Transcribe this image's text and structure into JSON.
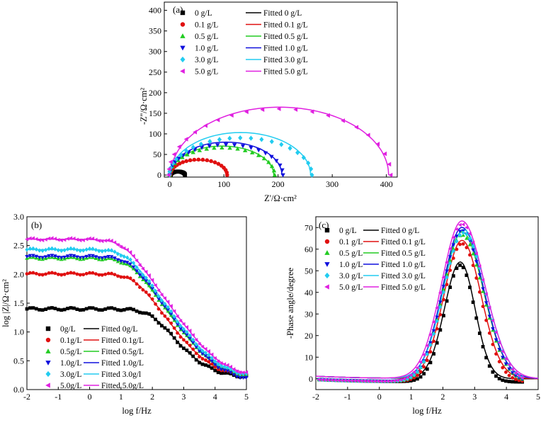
{
  "chart_data": [
    {
      "panel": "(a)",
      "type": "scatter",
      "title": "",
      "xlabel": "Z'/Ω·cm²",
      "ylabel": "-Z''/Ω·cm²",
      "xlim": [
        -10,
        420
      ],
      "ylim": [
        -5,
        420
      ],
      "xticks": [
        0,
        100,
        200,
        300,
        400
      ],
      "yticks": [
        0,
        50,
        100,
        150,
        200,
        250,
        300,
        350,
        400
      ],
      "legend_position": "top-left",
      "series": [
        {
          "name": "0 g/L",
          "fit_name": "Fitted 0 g/L",
          "marker": "square",
          "color": "#000000",
          "rs": 2,
          "rct": 26,
          "fit_scale": 0.62,
          "data_scale": 0.65
        },
        {
          "name": "0.1 g/L",
          "fit_name": "Fitted 0.1 g/L",
          "marker": "circle",
          "color": "#e01010",
          "rs": 2,
          "rct": 103,
          "fit_scale": 0.7,
          "data_scale": 0.73
        },
        {
          "name": "0.5 g/L",
          "fit_name": "Fitted 0.5 g/L",
          "marker": "triangle-up",
          "color": "#22cc22",
          "rs": 2,
          "rct": 190,
          "fit_scale": 0.74,
          "data_scale": 0.7
        },
        {
          "name": "1.0 g/L",
          "fit_name": "Fitted 1.0 g/L",
          "marker": "triangle-down",
          "color": "#1010dd",
          "rs": 2,
          "rct": 205,
          "fit_scale": 0.78,
          "data_scale": 0.72
        },
        {
          "name": "3.0 g/L",
          "fit_name": "Fitted 3.0 g/L",
          "marker": "diamond",
          "color": "#22ccf0",
          "rs": 2,
          "rct": 258,
          "fit_scale": 0.8,
          "data_scale": 0.7
        },
        {
          "name": "5.0 g/L",
          "fit_name": "Fitted 5.0 g/L",
          "marker": "triangle-left",
          "color": "#e020e0",
          "rs": 2,
          "rct": 402,
          "fit_scale": 0.82,
          "data_scale": 0.8
        }
      ]
    },
    {
      "panel": "(b)",
      "type": "scatter",
      "title": "",
      "xlabel": "log f/Hz",
      "ylabel": "log |Z|/Ω·cm²",
      "xlim": [
        -2,
        5
      ],
      "ylim": [
        0,
        3.0
      ],
      "xticks": [
        -2,
        -1,
        0,
        1,
        2,
        3,
        4,
        5
      ],
      "yticks": [
        "0.0",
        "0.5",
        "1.0",
        "1.5",
        "2.0",
        "2.5",
        "3.0"
      ],
      "legend_position": "bottom-left",
      "series": [
        {
          "name": "0g/L",
          "fit_name": "Fitted 0g/L",
          "marker": "square",
          "color": "#000000",
          "low_f_logZ": 1.4,
          "high_f_logZ": 0.2,
          "corner_logf": 2.0
        },
        {
          "name": "0.1g/L",
          "fit_name": "Fitted 0.1g/L",
          "marker": "circle",
          "color": "#e01010",
          "low_f_logZ": 2.01,
          "high_f_logZ": 0.2,
          "corner_logf": 1.45
        },
        {
          "name": "0.5g/L",
          "fit_name": "Fitted 0.5g/L",
          "marker": "triangle-up",
          "color": "#22cc22",
          "low_f_logZ": 2.28,
          "high_f_logZ": 0.19,
          "corner_logf": 1.3
        },
        {
          "name": "1.0g/L",
          "fit_name": "Fitted 1.0g/L",
          "marker": "triangle-down",
          "color": "#1010dd",
          "low_f_logZ": 2.31,
          "high_f_logZ": 0.13,
          "corner_logf": 1.3
        },
        {
          "name": "3.0g/L",
          "fit_name": "Fitted 3.0g/l",
          "marker": "diamond",
          "color": "#22ccf0",
          "low_f_logZ": 2.43,
          "high_f_logZ": 0.2,
          "corner_logf": 1.2
        },
        {
          "name": "5.0g/L",
          "fit_name": "Fitted 5.0g/L",
          "marker": "triangle-left",
          "color": "#e020e0",
          "low_f_logZ": 2.61,
          "high_f_logZ": 0.21,
          "corner_logf": 1.1
        }
      ]
    },
    {
      "panel": "(c)",
      "type": "scatter",
      "title": "",
      "xlabel": "log f/Hz",
      "ylabel": "-Phase angle/degree",
      "xlim": [
        -2,
        5
      ],
      "ylim": [
        -5,
        75
      ],
      "xticks": [
        -2,
        -1,
        0,
        1,
        2,
        3,
        4,
        5
      ],
      "yticks": [
        0,
        10,
        20,
        30,
        40,
        50,
        60,
        70
      ],
      "legend_position": "top-left",
      "series": [
        {
          "name": "0 g/L",
          "fit_name": "Fitted 0 g/L",
          "marker": "square",
          "color": "#000000",
          "peak_deg": 54,
          "peak_logf": 2.55,
          "width_left": 0.7,
          "width_right": 0.65
        },
        {
          "name": "0.1 g/L",
          "fit_name": "Fitted 0.1 g/L",
          "marker": "circle",
          "color": "#e01010",
          "peak_deg": 64,
          "peak_logf": 2.6,
          "width_left": 0.8,
          "width_right": 0.85
        },
        {
          "name": "0.5 g/L",
          "fit_name": "Fitted 0.5 g/L",
          "marker": "triangle-up",
          "color": "#22cc22",
          "peak_deg": 68,
          "peak_logf": 2.6,
          "width_left": 0.85,
          "width_right": 0.95
        },
        {
          "name": "1.0 g/L",
          "fit_name": "Fitted 1.0 g/L",
          "marker": "triangle-down",
          "color": "#1010dd",
          "peak_deg": 70,
          "peak_logf": 2.6,
          "width_left": 0.85,
          "width_right": 0.95
        },
        {
          "name": "3.0 g/L",
          "fit_name": "Fitted 3.0 g/L",
          "marker": "diamond",
          "color": "#22ccf0",
          "peak_deg": 69,
          "peak_logf": 2.65,
          "width_left": 0.88,
          "width_right": 0.98
        },
        {
          "name": "5.0 g/L",
          "fit_name": "Fitted 5.0 g/L",
          "marker": "triangle-left",
          "color": "#e020e0",
          "peak_deg": 73,
          "peak_logf": 2.6,
          "width_left": 0.9,
          "width_right": 1.0
        }
      ]
    }
  ]
}
